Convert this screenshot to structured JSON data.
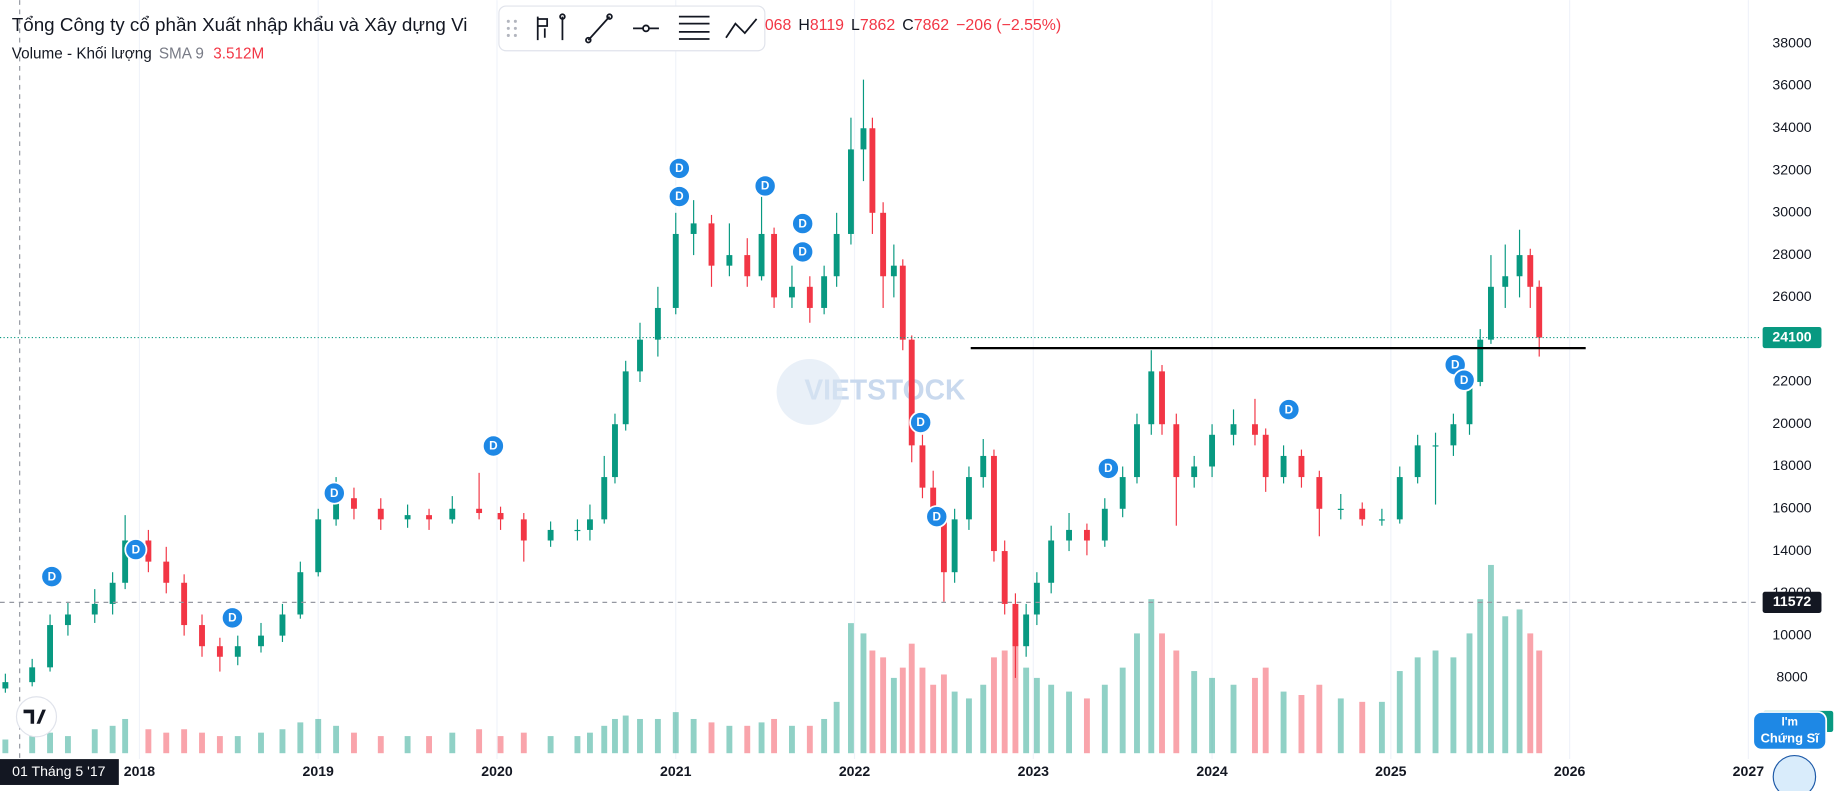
{
  "legend": {
    "title": "Tổng Công ty cổ phần Xuất nhập khẩu và Xây dựng Vi",
    "open_tail": "068",
    "high": {
      "label": "H",
      "value": 8119
    },
    "low": {
      "label": "L",
      "value": 7862
    },
    "close": {
      "label": "C",
      "value": 7862
    },
    "change": "−206 (−2.55%)"
  },
  "volume_legend": {
    "name": "Volume - Khối lượng",
    "sma": "SMA 9",
    "value": "3.512M"
  },
  "badge": {
    "line1": "I'm",
    "line2": "Chứng Sĩ"
  },
  "chart_data": {
    "type": "candlestick",
    "watermark": "VIETSTOCK",
    "x": [
      2017.25,
      2017.4,
      2017.5,
      2017.6,
      2017.75,
      2017.85,
      2017.92,
      2018.05,
      2018.15,
      2018.25,
      2018.35,
      2018.45,
      2018.55,
      2018.68,
      2018.8,
      2018.9,
      2019.0,
      2019.1,
      2019.2,
      2019.35,
      2019.5,
      2019.62,
      2019.75,
      2019.9,
      2020.02,
      2020.15,
      2020.3,
      2020.45,
      2020.52,
      2020.6,
      2020.66,
      2020.72,
      2020.8,
      2020.9,
      2021.0,
      2021.1,
      2021.2,
      2021.3,
      2021.4,
      2021.48,
      2021.55,
      2021.65,
      2021.75,
      2021.83,
      2021.9,
      2021.98,
      2022.05,
      2022.1,
      2022.16,
      2022.22,
      2022.27,
      2022.32,
      2022.38,
      2022.44,
      2022.5,
      2022.56,
      2022.64,
      2022.72,
      2022.78,
      2022.84,
      2022.9,
      2022.96,
      2023.02,
      2023.1,
      2023.2,
      2023.3,
      2023.4,
      2023.5,
      2023.58,
      2023.66,
      2023.72,
      2023.8,
      2023.9,
      2024.0,
      2024.12,
      2024.24,
      2024.3,
      2024.4,
      2024.5,
      2024.6,
      2024.72,
      2024.84,
      2024.95,
      2025.05,
      2025.15,
      2025.25,
      2025.35,
      2025.44,
      2025.5,
      2025.56,
      2025.64,
      2025.72,
      2025.78,
      2025.83
    ],
    "open": [
      7500,
      7800,
      8500,
      10500,
      11000,
      11500,
      12500,
      14500,
      13500,
      12500,
      10500,
      9500,
      9000,
      9500,
      10000,
      11000,
      13000,
      15500,
      16500,
      16000,
      15500,
      15700,
      15500,
      16000,
      15800,
      15500,
      14500,
      15000,
      15000,
      15500,
      17500,
      20000,
      22500,
      24000,
      25500,
      29000,
      29500,
      27500,
      28000,
      27000,
      29000,
      26000,
      26500,
      25500,
      27000,
      29000,
      33000,
      34000,
      30000,
      27000,
      27500,
      24000,
      19000,
      17000,
      15500,
      13000,
      15500,
      17500,
      18500,
      14000,
      11500,
      9500,
      11000,
      12500,
      14500,
      15000,
      14500,
      16000,
      17500,
      20000,
      22500,
      20000,
      17500,
      18000,
      19500,
      20000,
      19500,
      17500,
      18500,
      17500,
      16000,
      16000,
      15500,
      15500,
      17500,
      19000,
      19000,
      20000,
      22000,
      24000,
      26500,
      27000,
      28000,
      26500
    ],
    "high": [
      8200,
      8900,
      11000,
      11600,
      12200,
      13000,
      15700,
      15000,
      14200,
      12900,
      11000,
      9900,
      10000,
      10600,
      11500,
      13500,
      16000,
      17500,
      17000,
      16500,
      16200,
      16000,
      16600,
      17700,
      16100,
      15800,
      15400,
      15500,
      16200,
      18500,
      20500,
      23000,
      24800,
      26500,
      30000,
      30600,
      29900,
      29500,
      28800,
      30800,
      29300,
      27500,
      27000,
      27500,
      30000,
      34500,
      36300,
      34500,
      30500,
      28500,
      27800,
      24200,
      19500,
      17800,
      15800,
      16000,
      18000,
      19300,
      18800,
      14500,
      12000,
      11500,
      13000,
      15200,
      15800,
      15300,
      16500,
      18000,
      20500,
      23500,
      22800,
      20500,
      18500,
      20000,
      20700,
      21200,
      19800,
      19000,
      18800,
      17800,
      16700,
      16300,
      16000,
      18000,
      19500,
      19600,
      20500,
      22500,
      24500,
      28000,
      28500,
      29200,
      28300,
      26800
    ],
    "low": [
      7300,
      7600,
      8300,
      10000,
      10600,
      11000,
      12200,
      13000,
      12000,
      10000,
      9000,
      8300,
      8600,
      9200,
      9700,
      10800,
      12800,
      15200,
      15500,
      15000,
      15100,
      15000,
      15300,
      15500,
      15000,
      13500,
      14200,
      14500,
      14500,
      15300,
      17200,
      19700,
      22000,
      23200,
      25200,
      28000,
      26500,
      27000,
      26500,
      26800,
      25500,
      25500,
      24800,
      25200,
      26500,
      28500,
      31500,
      29000,
      25500,
      26000,
      23500,
      18200,
      16500,
      15200,
      11600,
      12500,
      15000,
      17000,
      13500,
      11000,
      8000,
      9000,
      10500,
      12000,
      14000,
      13800,
      14200,
      15600,
      17200,
      19500,
      19500,
      15200,
      17000,
      17500,
      19000,
      19000,
      16800,
      17200,
      17000,
      14700,
      15500,
      15200,
      15200,
      15300,
      17200,
      16200,
      18500,
      19500,
      21800,
      23800,
      25500,
      26000,
      25500,
      23200
    ],
    "close": [
      7800,
      8500,
      10500,
      11000,
      11500,
      12500,
      14500,
      13500,
      12500,
      10500,
      9500,
      9000,
      9500,
      10000,
      11000,
      13000,
      15500,
      16500,
      16000,
      15500,
      15700,
      15500,
      16000,
      15800,
      15500,
      14500,
      15000,
      15000,
      15500,
      17500,
      20000,
      22500,
      24000,
      25500,
      29000,
      29500,
      27500,
      28000,
      27000,
      29000,
      26000,
      26500,
      25500,
      27000,
      29000,
      33000,
      34000,
      30000,
      27000,
      27500,
      24000,
      19000,
      17000,
      15500,
      13000,
      15500,
      17500,
      18500,
      14000,
      11500,
      9500,
      11000,
      12500,
      14500,
      15000,
      14500,
      16000,
      17500,
      20000,
      22500,
      20000,
      17500,
      18000,
      19500,
      20000,
      19500,
      17500,
      18500,
      17500,
      16000,
      16000,
      15500,
      15500,
      17500,
      19000,
      19000,
      20000,
      22000,
      24000,
      26500,
      27000,
      28000,
      26500,
      24100
    ],
    "volume": [
      0.4,
      0.5,
      0.6,
      0.5,
      0.7,
      0.8,
      1.0,
      0.7,
      0.6,
      0.7,
      0.6,
      0.5,
      0.5,
      0.6,
      0.7,
      0.9,
      1.0,
      0.8,
      0.6,
      0.5,
      0.5,
      0.5,
      0.6,
      0.7,
      0.5,
      0.6,
      0.5,
      0.5,
      0.6,
      0.8,
      1.0,
      1.1,
      1.0,
      1.0,
      1.2,
      1.0,
      0.9,
      0.8,
      0.8,
      0.9,
      1.0,
      0.8,
      0.8,
      1.0,
      1.5,
      3.8,
      3.5,
      3.0,
      2.8,
      2.2,
      2.5,
      3.2,
      2.5,
      2.0,
      2.3,
      1.8,
      1.6,
      2.0,
      2.8,
      3.0,
      3.2,
      2.5,
      2.2,
      2.0,
      1.8,
      1.6,
      2.0,
      2.5,
      3.5,
      4.5,
      3.5,
      3.0,
      2.4,
      2.2,
      2.0,
      2.2,
      2.5,
      1.8,
      1.7,
      2.0,
      1.6,
      1.5,
      1.5,
      2.4,
      2.8,
      3.0,
      2.8,
      3.5,
      4.5,
      5.5,
      4.0,
      4.2,
      3.5,
      3.0
    ],
    "up_color": "#089981",
    "down_color": "#f23645",
    "xlim": [
      2017.22,
      2027.06
    ],
    "ylim": [
      4160,
      40060
    ],
    "xticks": [
      2018,
      2019,
      2020,
      2021,
      2022,
      2023,
      2024,
      2025,
      2026,
      2027
    ],
    "yticks": [
      8000,
      10000,
      12000,
      14000,
      16000,
      18000,
      20000,
      22000,
      24000,
      26000,
      28000,
      30000,
      32000,
      34000,
      36000,
      38000
    ],
    "grid": true,
    "markers": {
      "label": "D",
      "color": "#1e88e5",
      "x": [
        2017.51,
        2017.98,
        2018.52,
        2019.09,
        2019.98,
        2021.02,
        2021.02,
        2021.5,
        2021.71,
        2021.71,
        2022.37,
        2022.46,
        2023.42,
        2024.43,
        2025.36,
        2025.41
      ],
      "y": [
        12790,
        14070,
        10840,
        16740,
        18970,
        32100,
        30770,
        31270,
        29490,
        28150,
        20080,
        15630,
        17910,
        20690,
        22810,
        22080
      ]
    },
    "trend_line": {
      "x": [
        2022.65,
        2026.09
      ],
      "y": [
        23600,
        23600
      ],
      "color": "#000000"
    },
    "crosshair": {
      "x": 2017.33,
      "x_label": "01 Tháng 5 '17",
      "y": 11572
    }
  }
}
